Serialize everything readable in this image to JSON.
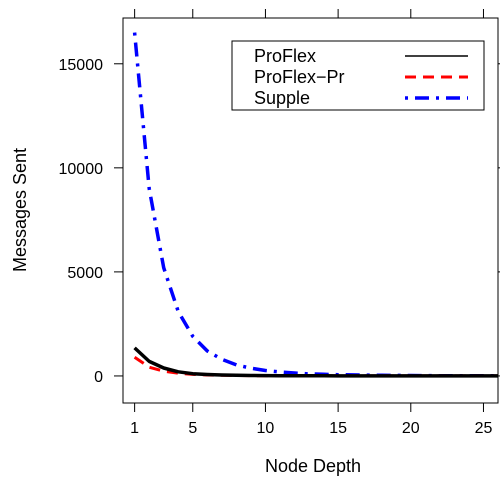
{
  "chart_data": {
    "type": "line",
    "title": "",
    "xlabel": "Node Depth",
    "ylabel": "Messages Sent",
    "xlim": [
      0.2,
      26
    ],
    "ylim": [
      -1300,
      17200
    ],
    "x_ticks": [
      1,
      5,
      10,
      15,
      20,
      25
    ],
    "y_ticks": [
      0,
      5000,
      10000,
      15000
    ],
    "grid": false,
    "legend_position": "top-right",
    "series": [
      {
        "name": "ProFlex",
        "color": "#000000",
        "line_style": "solid",
        "x": [
          1,
          2,
          3,
          4,
          5,
          6,
          7,
          8,
          9,
          10,
          11,
          12,
          13,
          14,
          15,
          16,
          17,
          18,
          19,
          20,
          21,
          22,
          23,
          24,
          25,
          26
        ],
        "values": [
          1350,
          700,
          380,
          200,
          110,
          70,
          45,
          30,
          22,
          15,
          10,
          8,
          6,
          5,
          4,
          3,
          3,
          2,
          2,
          2,
          1,
          1,
          1,
          1,
          1,
          1
        ]
      },
      {
        "name": "ProFlex−Pr",
        "color": "#ff0000",
        "line_style": "dashed",
        "x": [
          1,
          2,
          3,
          4,
          5,
          6,
          7,
          8,
          9,
          10,
          11,
          12,
          13,
          14,
          15,
          16,
          17,
          18,
          19,
          20,
          21,
          22,
          23,
          24,
          25,
          26
        ],
        "values": [
          900,
          420,
          230,
          130,
          75,
          45,
          30,
          20,
          14,
          10,
          7,
          5,
          4,
          3,
          3,
          2,
          2,
          2,
          1,
          1,
          1,
          1,
          1,
          1,
          1,
          1
        ]
      },
      {
        "name": "Supple",
        "color": "#0000ff",
        "line_style": "dashdot",
        "x": [
          1,
          2,
          3,
          4,
          5,
          6,
          7,
          8,
          9,
          10,
          11,
          12,
          13,
          14,
          15,
          16,
          17,
          18,
          19,
          20,
          21,
          22,
          23,
          24,
          25,
          26
        ],
        "values": [
          16500,
          9000,
          5200,
          3100,
          1900,
          1200,
          800,
          530,
          370,
          260,
          190,
          140,
          100,
          80,
          60,
          50,
          40,
          30,
          25,
          20,
          15,
          12,
          10,
          8,
          6,
          5
        ]
      }
    ]
  }
}
